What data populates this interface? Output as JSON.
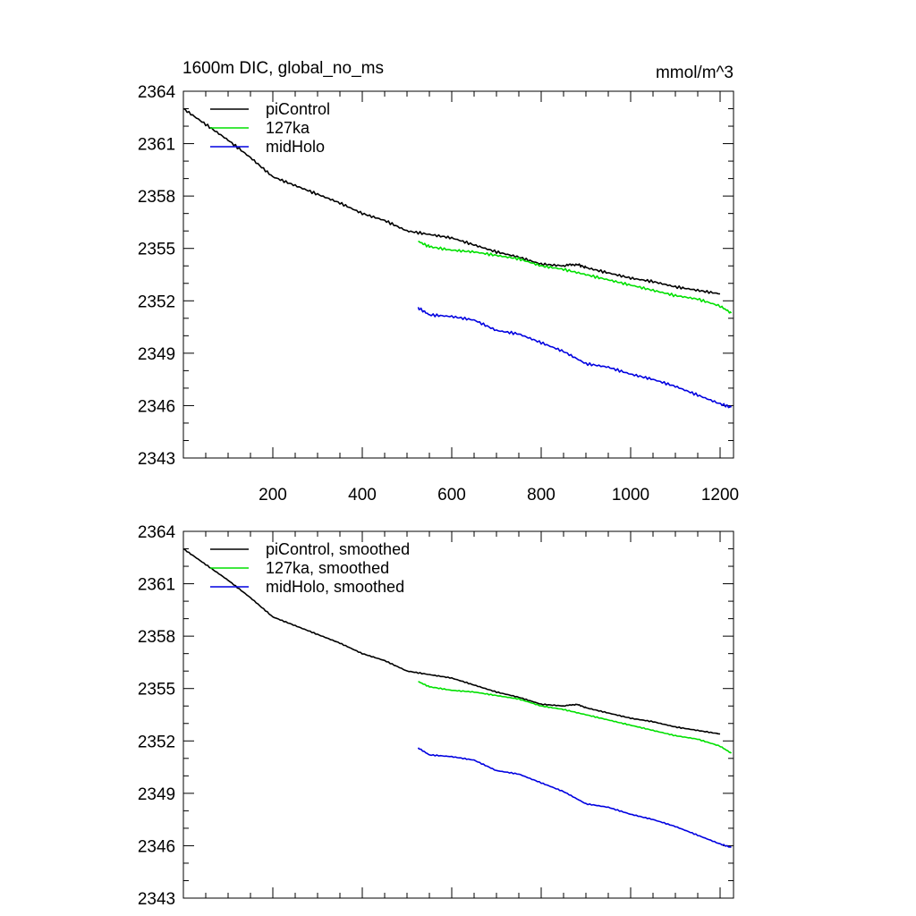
{
  "figure": {
    "title_left": "1600m DIC, global_no_ms",
    "title_right": "mmol/m^3"
  },
  "chart_data": [
    {
      "type": "line",
      "panel": "top",
      "title": "1600m DIC, global_no_ms",
      "units": "mmol/m^3",
      "xlim": [
        0,
        1230
      ],
      "ylim": [
        2343,
        2364
      ],
      "xticks": [
        200,
        400,
        600,
        800,
        1000,
        1200
      ],
      "xtick_labels": [
        "200",
        "400",
        "600",
        "800",
        "1000",
        "1200"
      ],
      "yticks": [
        2343,
        2346,
        2349,
        2352,
        2355,
        2358,
        2361,
        2364
      ],
      "ytick_labels": [
        "2343",
        "2346",
        "2349",
        "2352",
        "2355",
        "2358",
        "2361",
        "2364"
      ],
      "legend_position": "top-left",
      "series": [
        {
          "name": "piControl",
          "color": "#000000",
          "x": [
            0,
            50,
            100,
            150,
            200,
            250,
            300,
            350,
            400,
            450,
            500,
            550,
            600,
            650,
            700,
            750,
            800,
            850,
            880,
            900,
            950,
            1000,
            1050,
            1100,
            1150,
            1200
          ],
          "y": [
            2363.0,
            2362.1,
            2361.2,
            2360.2,
            2359.1,
            2358.6,
            2358.1,
            2357.6,
            2357.0,
            2356.6,
            2356.0,
            2355.8,
            2355.6,
            2355.2,
            2354.8,
            2354.5,
            2354.1,
            2354.0,
            2354.1,
            2353.9,
            2353.6,
            2353.3,
            2353.1,
            2352.8,
            2352.6,
            2352.4
          ]
        },
        {
          "name": "127ka",
          "color": "#00e000",
          "x": [
            525,
            550,
            600,
            650,
            700,
            750,
            800,
            850,
            900,
            950,
            1000,
            1050,
            1100,
            1150,
            1200,
            1225
          ],
          "y": [
            2355.4,
            2355.1,
            2354.9,
            2354.8,
            2354.6,
            2354.4,
            2354.0,
            2353.8,
            2353.5,
            2353.2,
            2352.9,
            2352.6,
            2352.3,
            2352.1,
            2351.7,
            2351.3
          ]
        },
        {
          "name": "midHolo",
          "color": "#0000e0",
          "x": [
            525,
            550,
            600,
            650,
            700,
            750,
            800,
            850,
            900,
            950,
            1000,
            1050,
            1100,
            1150,
            1200,
            1225
          ],
          "y": [
            2351.6,
            2351.2,
            2351.1,
            2350.9,
            2350.3,
            2350.1,
            2349.6,
            2349.1,
            2348.4,
            2348.2,
            2347.8,
            2347.5,
            2347.1,
            2346.6,
            2346.1,
            2345.9
          ]
        }
      ]
    },
    {
      "type": "line",
      "panel": "bottom",
      "title": "",
      "xlim": [
        0,
        1230
      ],
      "ylim": [
        2343,
        2364
      ],
      "xticks": [
        200,
        400,
        600,
        800,
        1000,
        1200
      ],
      "yticks": [
        2343,
        2346,
        2349,
        2352,
        2355,
        2358,
        2361,
        2364
      ],
      "ytick_labels": [
        "2343",
        "2346",
        "2349",
        "2352",
        "2355",
        "2358",
        "2361",
        "2364"
      ],
      "legend_position": "top-left",
      "series": [
        {
          "name": "piControl, smoothed",
          "color": "#000000",
          "x": [
            0,
            50,
            100,
            150,
            200,
            250,
            300,
            350,
            400,
            450,
            500,
            550,
            600,
            650,
            700,
            750,
            800,
            850,
            880,
            900,
            950,
            1000,
            1050,
            1100,
            1150,
            1200
          ],
          "y": [
            2363.0,
            2362.1,
            2361.2,
            2360.2,
            2359.1,
            2358.6,
            2358.1,
            2357.6,
            2357.0,
            2356.6,
            2356.0,
            2355.8,
            2355.6,
            2355.2,
            2354.8,
            2354.5,
            2354.1,
            2354.0,
            2354.1,
            2353.9,
            2353.6,
            2353.3,
            2353.1,
            2352.8,
            2352.6,
            2352.4
          ]
        },
        {
          "name": "127ka, smoothed",
          "color": "#00e000",
          "x": [
            525,
            550,
            600,
            650,
            700,
            750,
            800,
            850,
            900,
            950,
            1000,
            1050,
            1100,
            1150,
            1200,
            1225
          ],
          "y": [
            2355.4,
            2355.1,
            2354.9,
            2354.8,
            2354.6,
            2354.4,
            2354.0,
            2353.8,
            2353.5,
            2353.2,
            2352.9,
            2352.6,
            2352.3,
            2352.1,
            2351.7,
            2351.3
          ]
        },
        {
          "name": "midHolo, smoothed",
          "color": "#0000e0",
          "x": [
            525,
            550,
            600,
            650,
            700,
            750,
            800,
            850,
            900,
            950,
            1000,
            1050,
            1100,
            1150,
            1200,
            1225
          ],
          "y": [
            2351.6,
            2351.2,
            2351.1,
            2350.9,
            2350.3,
            2350.1,
            2349.6,
            2349.1,
            2348.4,
            2348.2,
            2347.8,
            2347.5,
            2347.1,
            2346.6,
            2346.1,
            2345.9
          ]
        }
      ]
    }
  ]
}
